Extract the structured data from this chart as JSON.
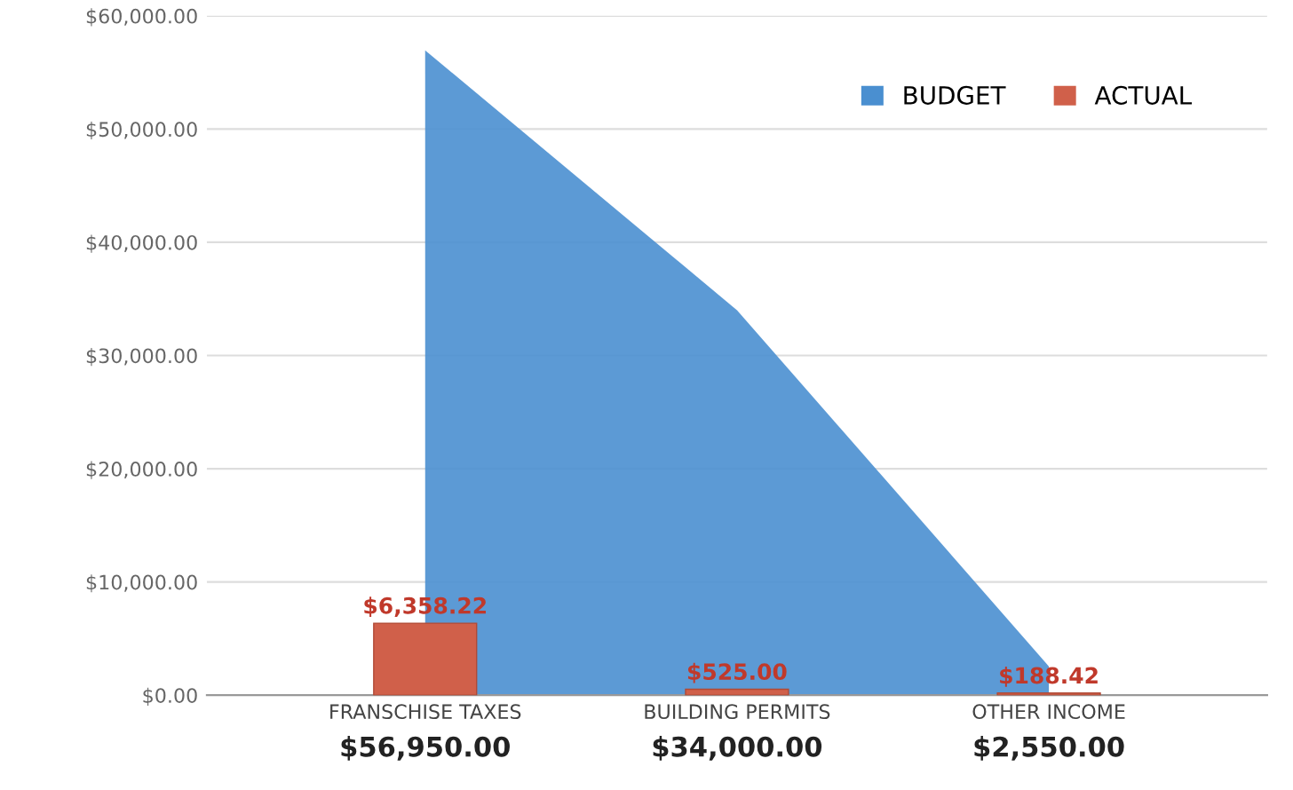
{
  "chart_data": {
    "type": "bar",
    "categories": [
      "FRANSCHISE TAXES",
      "BUILDING PERMITS",
      "OTHER INCOME"
    ],
    "series": [
      {
        "name": "BUDGET",
        "type": "area",
        "color": "#4a8fd0",
        "values": [
          56950,
          34000,
          2550
        ],
        "value_labels": [
          "$56,950.00",
          "$34,000.00",
          "$2,550.00"
        ]
      },
      {
        "name": "ACTUAL",
        "color": "#d0604a",
        "values": [
          6358.22,
          525,
          188.42
        ],
        "value_labels": [
          "$6,358.22",
          "$525.00",
          "$188.42"
        ]
      }
    ],
    "ylim": [
      0,
      60000
    ],
    "yticks": [
      {
        "value": 0,
        "label": "$0.00"
      },
      {
        "value": 10000,
        "label": "$10,000.00"
      },
      {
        "value": 20000,
        "label": "$20,000.00"
      },
      {
        "value": 30000,
        "label": "$30,000.00"
      },
      {
        "value": 40000,
        "label": "$40,000.00"
      },
      {
        "value": 50000,
        "label": "$50,000.00"
      },
      {
        "value": 60000,
        "label": "$60,000.00"
      }
    ],
    "grid": "y",
    "legend": "top right"
  }
}
